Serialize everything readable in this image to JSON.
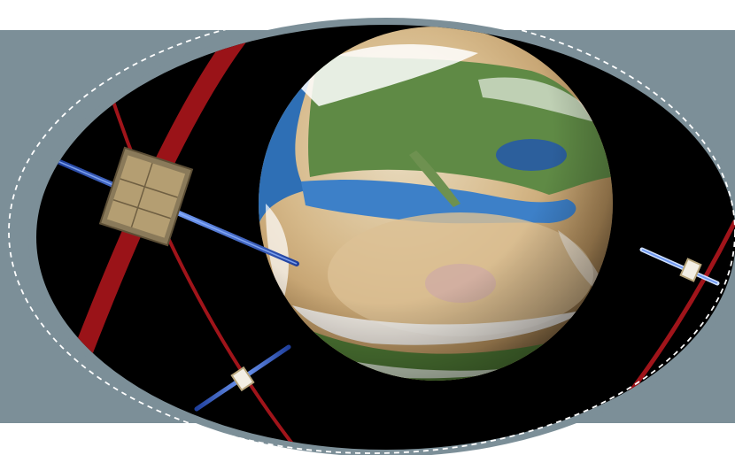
{
  "image": {
    "subject": "satellite-orbits-around-earth",
    "colors": {
      "background": "#ffffff",
      "banner": "#7c8f98",
      "ring": "#7c8f98",
      "space": "#000000",
      "orbit": "#a0141a",
      "solar_panel": "#3b6fd8",
      "dashed_outline": "#ffffff"
    }
  }
}
